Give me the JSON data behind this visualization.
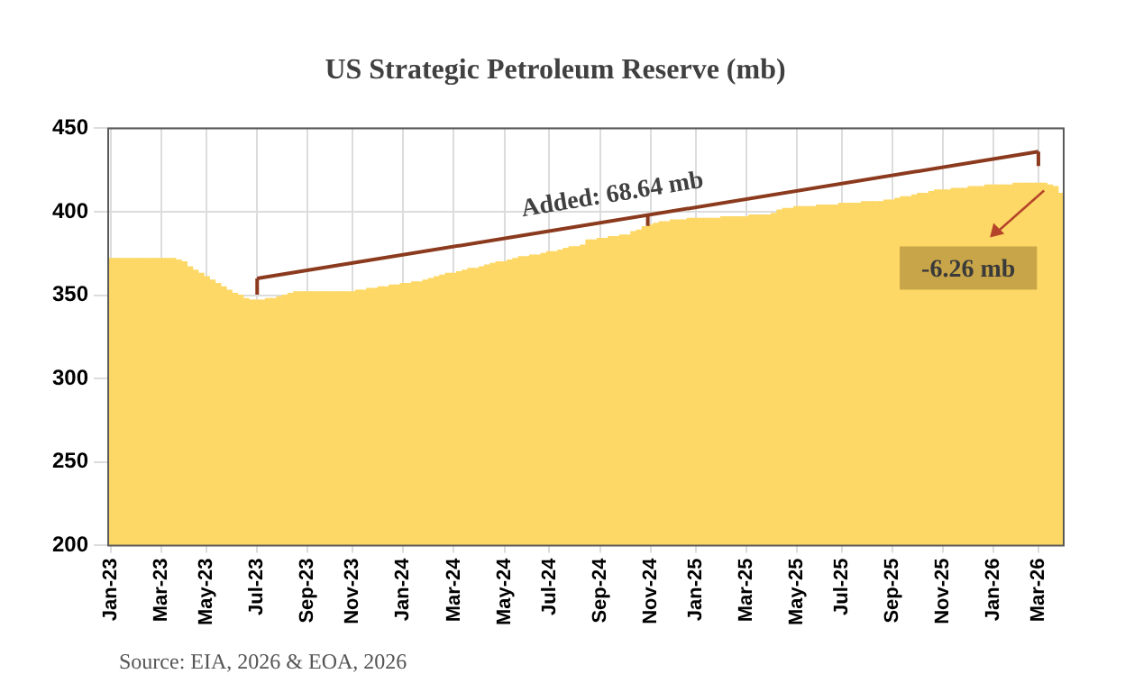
{
  "chart_data": {
    "type": "bar",
    "title": "US Strategic Petroleum Reserve (mb)",
    "categories": [
      "Jan-23",
      null,
      null,
      null,
      null,
      null,
      null,
      null,
      null,
      "Mar-23",
      null,
      null,
      null,
      null,
      null,
      null,
      null,
      "May-23",
      null,
      null,
      null,
      null,
      null,
      null,
      null,
      null,
      "Jul-23",
      null,
      null,
      null,
      null,
      null,
      null,
      null,
      null,
      "Sep-23",
      null,
      null,
      null,
      null,
      null,
      null,
      null,
      "Nov-23",
      null,
      null,
      null,
      null,
      null,
      null,
      null,
      null,
      "Jan-24",
      null,
      null,
      null,
      null,
      null,
      null,
      null,
      null,
      "Mar-24",
      null,
      null,
      null,
      null,
      null,
      null,
      null,
      null,
      "May-24",
      null,
      null,
      null,
      null,
      null,
      null,
      null,
      "Jul-24",
      null,
      null,
      null,
      null,
      null,
      null,
      null,
      null,
      "Sep-24",
      null,
      null,
      null,
      null,
      null,
      null,
      null,
      null,
      "Nov-24",
      null,
      null,
      null,
      null,
      null,
      null,
      null,
      "Jan-25",
      null,
      null,
      null,
      null,
      null,
      null,
      null,
      null,
      "Mar-25",
      null,
      null,
      null,
      null,
      null,
      null,
      null,
      null,
      "May-25",
      null,
      null,
      null,
      null,
      null,
      null,
      null,
      "Jul-25",
      null,
      null,
      null,
      null,
      null,
      null,
      null,
      null,
      "Sep-25",
      null,
      null,
      null,
      null,
      null,
      null,
      null,
      null,
      "Nov-25",
      null,
      null,
      null,
      null,
      null,
      null,
      null,
      null,
      "Jan-26",
      null,
      null,
      null,
      null,
      null,
      null,
      null,
      "Mar-26",
      null,
      null,
      null,
      null
    ],
    "series": [
      {
        "color": "#fdd866",
        "values": [
          372,
          372,
          372,
          372,
          372,
          372,
          372,
          372,
          372,
          372,
          372,
          372,
          371,
          370,
          367,
          365,
          363,
          361,
          359,
          357,
          355,
          353,
          351,
          350,
          348,
          347,
          347,
          347,
          348,
          348,
          349,
          350,
          351,
          352,
          352,
          352,
          352,
          352,
          352,
          352,
          352,
          352,
          352,
          352,
          353,
          353,
          354,
          354,
          355,
          355,
          356,
          356,
          357,
          357,
          358,
          358,
          359,
          360,
          361,
          362,
          363,
          363,
          364,
          365,
          366,
          366,
          367,
          368,
          369,
          370,
          370,
          371,
          372,
          373,
          373,
          374,
          374,
          375,
          376,
          376,
          377,
          378,
          379,
          379,
          380,
          383,
          383,
          384,
          384,
          385,
          385,
          386,
          386,
          388,
          389,
          391,
          392,
          393,
          394,
          394,
          395,
          395,
          395,
          396,
          396,
          396,
          396,
          396,
          396,
          397,
          397,
          397,
          397,
          397,
          398,
          398,
          398,
          398,
          399,
          401,
          402,
          402,
          403,
          403,
          403,
          403,
          404,
          404,
          404,
          404,
          405,
          405,
          405,
          405,
          406,
          406,
          406,
          406,
          407,
          407,
          408,
          409,
          409,
          410,
          411,
          411,
          412,
          413,
          413,
          413,
          414,
          414,
          414,
          415,
          415,
          415,
          416,
          416,
          416,
          416,
          416,
          417,
          417,
          417,
          417,
          417,
          417,
          416,
          415,
          411
        ]
      },
      {
        "type": "line",
        "color": "#8b3a1e",
        "x": [
          "Jul-23",
          "Mar-26"
        ],
        "values": [
          360,
          436
        ]
      }
    ],
    "ylim": [
      200,
      450
    ],
    "yticks": [
      200,
      250,
      300,
      350,
      400,
      450
    ],
    "grid": true,
    "annotations": [
      "Added: 68.64 mb",
      "-6.26 mb",
      "Source: EIA, 2026 & EOA, 2026"
    ]
  }
}
